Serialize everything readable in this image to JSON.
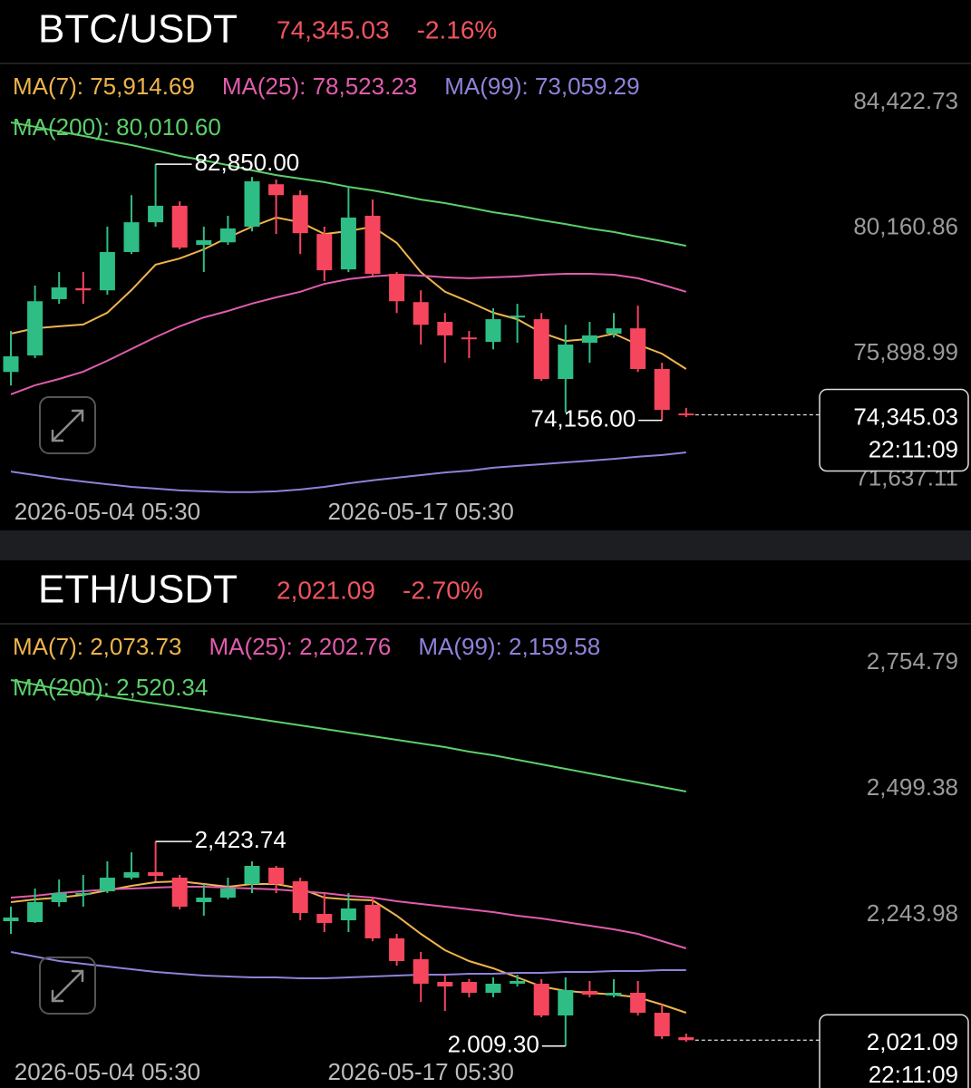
{
  "chart_data": [
    {
      "type": "candlestick",
      "title": "BTC/USDT",
      "price": "74,345.03",
      "change": "-2.16%",
      "time": "22:11:09",
      "max_label": "82,850.00",
      "min_label": "74,156.00",
      "up_color": "#2ebd85",
      "down_color": "#f6465d",
      "categories": [
        null,
        null,
        null,
        null,
        "2026-05-04 05:30",
        null,
        null,
        null,
        null,
        null,
        null,
        null,
        null,
        null,
        null,
        null,
        null,
        "2026-05-17 05:30",
        null,
        null,
        null,
        null,
        null,
        null,
        null,
        null,
        null,
        null,
        null
      ],
      "open": [
        75800,
        76360,
        78270,
        78640,
        78570,
        79870,
        80880,
        81440,
        80110,
        80200,
        80730,
        82170,
        81800,
        80480,
        79280,
        81100,
        79130,
        78170,
        77500,
        76970,
        76820,
        77650,
        77590,
        75560,
        76790,
        77100,
        77280,
        75900,
        74390
      ],
      "high": [
        77190,
        78730,
        79190,
        79190,
        80730,
        81800,
        82850,
        81590,
        80730,
        81100,
        82420,
        82330,
        81960,
        80730,
        82110,
        81650,
        79190,
        78570,
        77800,
        77190,
        77960,
        78110,
        77800,
        77400,
        77500,
        77800,
        78050,
        76110,
        74580
      ],
      "low": [
        75340,
        76270,
        78110,
        78110,
        78420,
        79800,
        80730,
        79960,
        79190,
        80110,
        80570,
        80480,
        79800,
        78880,
        79190,
        79040,
        77800,
        76730,
        76110,
        76270,
        76570,
        76790,
        75500,
        74420,
        76110,
        76970,
        75800,
        74156,
        74270
      ],
      "close": [
        76330,
        78200,
        78670,
        78570,
        79870,
        80880,
        81440,
        80020,
        80270,
        80670,
        82270,
        81800,
        80510,
        79250,
        81040,
        79130,
        78200,
        77400,
        77040,
        76910,
        77590,
        77710,
        75560,
        76730,
        77040,
        77280,
        75900,
        74510,
        74345.03
      ],
      "series": [
        {
          "name": "MA(7): 75,914.69",
          "color": "#f0b44c",
          "values": [
            77100,
            77280,
            77350,
            77410,
            77810,
            78580,
            79440,
            79650,
            79960,
            80360,
            80730,
            81040,
            80880,
            80480,
            80580,
            80730,
            80180,
            79190,
            78520,
            78180,
            77810,
            77590,
            77130,
            76850,
            76920,
            77100,
            76730,
            76420,
            75900
          ]
        },
        {
          "name": "MA(25): 78,523.23",
          "color": "#e05cad",
          "values": [
            75040,
            75350,
            75560,
            75810,
            76180,
            76580,
            76980,
            77350,
            77650,
            77870,
            78120,
            78330,
            78520,
            78790,
            78950,
            79040,
            79100,
            79070,
            79010,
            78980,
            79010,
            79040,
            79100,
            79130,
            79130,
            79100,
            78980,
            78760,
            78520
          ]
        },
        {
          "name": "MA(99): 73,059.29",
          "color": "#8f82d9",
          "values": [
            72420,
            72300,
            72180,
            72080,
            71990,
            71900,
            71840,
            71780,
            71750,
            71720,
            71720,
            71750,
            71810,
            71900,
            72020,
            72120,
            72210,
            72300,
            72390,
            72450,
            72550,
            72610,
            72670,
            72730,
            72790,
            72850,
            72920,
            72980,
            73070
          ]
        },
        {
          "name": "MA(200): 80,010.60",
          "color": "#5ccf6a",
          "values": [
            84270,
            84120,
            83960,
            83810,
            83650,
            83500,
            83320,
            83130,
            82980,
            82820,
            82640,
            82480,
            82360,
            82240,
            82080,
            81960,
            81810,
            81650,
            81530,
            81380,
            81220,
            81100,
            80950,
            80820,
            80670,
            80550,
            80390,
            80240,
            80080
          ]
        }
      ],
      "ylim": [
        71561,
        86269
      ],
      "yticks": [
        {
          "value": 84422.73,
          "label": "84,422.73"
        },
        {
          "value": 80160.86,
          "label": "80,160.86"
        },
        {
          "value": 75898.99,
          "label": "75,898.99"
        },
        {
          "value": 71637.11,
          "label": "71,637.11"
        }
      ],
      "grid": false
    },
    {
      "type": "candlestick",
      "title": "ETH/USDT",
      "price": "2,021.09",
      "change": "-2.70%",
      "time": "22:11:09",
      "max_label": "2,423.74",
      "min_label": "2.009.30",
      "up_color": "#2ebd85",
      "down_color": "#f6465d",
      "categories": [
        null,
        null,
        null,
        null,
        "2026-05-04 05:30",
        null,
        null,
        null,
        null,
        null,
        null,
        null,
        null,
        null,
        null,
        null,
        null,
        "2026-05-17 05:30",
        null,
        null,
        null,
        null,
        null,
        null,
        null,
        null,
        null,
        null,
        null
      ],
      "open": [
        2262.3,
        2260.5,
        2300.9,
        2315.6,
        2322.9,
        2350.5,
        2361.5,
        2350.5,
        2300.9,
        2310.1,
        2337.6,
        2370.8,
        2343.2,
        2277.0,
        2264.1,
        2295.4,
        2227.5,
        2185.2,
        2139.2,
        2139.2,
        2117.2,
        2135.6,
        2135.6,
        2071.2,
        2120.8,
        2111.7,
        2117.2,
        2076.7,
        2027.1
      ],
      "high": [
        2291.7,
        2328.5,
        2346.9,
        2356.0,
        2383.6,
        2401.9,
        2423.74,
        2356.0,
        2337.6,
        2350.5,
        2383.6,
        2374.4,
        2350.5,
        2319.3,
        2319.3,
        2310.1,
        2236.6,
        2199.9,
        2153.9,
        2144.7,
        2148.4,
        2153.9,
        2144.7,
        2148.4,
        2141.1,
        2144.7,
        2141.1,
        2093.3,
        2034.5
      ],
      "low": [
        2236.6,
        2258.7,
        2291.7,
        2291.7,
        2319.3,
        2346.9,
        2343.2,
        2286.2,
        2273.4,
        2306.4,
        2319.3,
        2319.3,
        2264.1,
        2240.3,
        2240.3,
        2221.9,
        2172.3,
        2098.8,
        2080.4,
        2108.0,
        2108.0,
        2130.0,
        2067.5,
        2009.3,
        2108.0,
        2108.0,
        2071.2,
        2023.5,
        2018.0
      ],
      "close": [
        2269.7,
        2300.9,
        2319.3,
        2319.3,
        2350.5,
        2361.5,
        2354.2,
        2291.7,
        2310.1,
        2328.5,
        2374.4,
        2337.6,
        2278.9,
        2258.7,
        2288.1,
        2227.5,
        2181.5,
        2135.6,
        2130.0,
        2117.2,
        2135.6,
        2141.1,
        2071.2,
        2122.6,
        2113.5,
        2117.2,
        2076.7,
        2029.0,
        2021.09
      ],
      "series": [
        {
          "name": "MA(7): 2,073.73",
          "color": "#f0b44c",
          "values": [
            2300.9,
            2306.4,
            2310.1,
            2315.6,
            2324.8,
            2334.0,
            2341.3,
            2343.2,
            2337.6,
            2332.1,
            2337.6,
            2337.6,
            2328.5,
            2310.1,
            2306.4,
            2304.6,
            2273.4,
            2236.6,
            2203.5,
            2181.5,
            2166.8,
            2148.4,
            2130.0,
            2120.8,
            2117.2,
            2113.5,
            2108.0,
            2093.3,
            2076.7
          ]
        },
        {
          "name": "MA(25): 2,202.76",
          "color": "#e05cad",
          "values": [
            2310.1,
            2313.8,
            2319.3,
            2322.9,
            2326.6,
            2328.5,
            2330.3,
            2332.1,
            2332.1,
            2330.3,
            2328.5,
            2326.6,
            2322.9,
            2319.3,
            2313.8,
            2310.1,
            2302.7,
            2297.2,
            2291.7,
            2286.2,
            2280.7,
            2273.4,
            2267.8,
            2260.5,
            2253.1,
            2245.8,
            2236.6,
            2221.9,
            2207.2
          ]
        },
        {
          "name": "MA(99): 2,159.58",
          "color": "#8f82d9",
          "values": [
            2199.9,
            2190.6,
            2181.5,
            2175.9,
            2170.4,
            2164.9,
            2159.4,
            2155.7,
            2152.1,
            2150.2,
            2148.4,
            2148.4,
            2146.5,
            2146.5,
            2148.4,
            2150.2,
            2152.1,
            2153.9,
            2153.9,
            2155.7,
            2155.7,
            2157.6,
            2157.6,
            2159.4,
            2159.4,
            2161.2,
            2161.2,
            2163.1,
            2163.1
          ]
        },
        {
          "name": "MA(200): 2,520.34",
          "color": "#5ccf6a",
          "values": [
            2751.1,
            2741.9,
            2732.7,
            2725.4,
            2718.0,
            2710.7,
            2703.3,
            2696.0,
            2688.6,
            2681.3,
            2673.9,
            2666.6,
            2659.2,
            2651.9,
            2644.5,
            2637.2,
            2629.8,
            2622.5,
            2615.1,
            2605.9,
            2598.6,
            2589.4,
            2580.2,
            2571.0,
            2561.8,
            2552.6,
            2543.4,
            2534.3,
            2525.1
          ]
        }
      ],
      "ylim": [
        1986.7,
        2865.0
      ],
      "yticks": [
        {
          "value": 2754.79,
          "label": "2,754.79"
        },
        {
          "value": 2499.38,
          "label": "2,499.38"
        },
        {
          "value": 2243.98,
          "label": "2,243.98"
        }
      ],
      "grid": false
    }
  ]
}
